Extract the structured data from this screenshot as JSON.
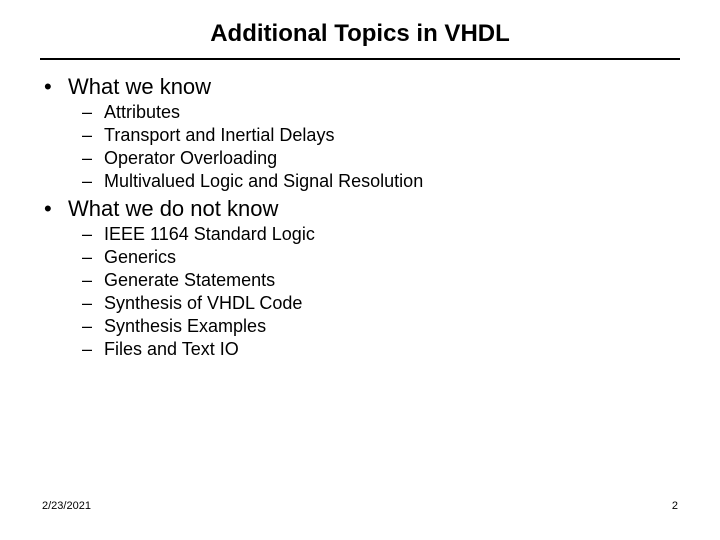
{
  "title": "Additional Topics in VHDL",
  "sections": [
    {
      "heading": "What we know",
      "items": [
        "Attributes",
        "Transport and Inertial Delays",
        "Operator Overloading",
        "Multivalued Logic and Signal Resolution"
      ]
    },
    {
      "heading": "What we do not know",
      "items": [
        "IEEE 1164 Standard Logic",
        "Generics",
        "Generate Statements",
        "Synthesis of VHDL Code",
        "Synthesis Examples",
        "Files and Text IO"
      ]
    }
  ],
  "footer": {
    "date": "2/23/2021",
    "page": "2"
  },
  "bullets": {
    "l1": "•",
    "l2": "–"
  },
  "colors": {
    "text": "#000000",
    "background": "#ffffff",
    "rule": "#000000"
  },
  "fonts": {
    "title_size_pt": 24,
    "title_weight": "bold",
    "l1_size_pt": 22,
    "l2_size_pt": 18,
    "footer_size_pt": 11,
    "family": "Arial"
  }
}
